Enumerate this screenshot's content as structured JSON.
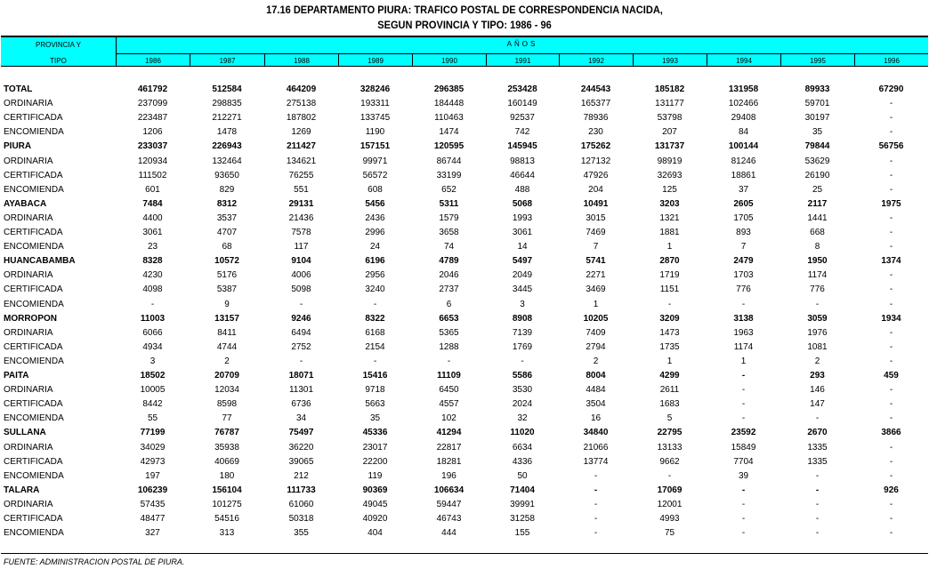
{
  "title_line1": "17.16  DEPARTAMENTO PIURA: TRAFICO POSTAL DE CORRESPONDENCIA NACIDA,",
  "title_line2": "SEGUN PROVINCIA Y TIPO: 1986 - 96",
  "header": {
    "prov1": "PROVINCIA Y",
    "prov2": "TIPO",
    "anos": "AÑOS",
    "years": [
      "1986",
      "1987",
      "1988",
      "1989",
      "1990",
      "1991",
      "1992",
      "1993",
      "1994",
      "1995",
      "1996"
    ]
  },
  "rows": [
    {
      "label": "TOTAL",
      "bold": true,
      "values": [
        "461792",
        "512584",
        "464209",
        "328246",
        "296385",
        "253428",
        "244543",
        "185182",
        "131958",
        "89933",
        "67290"
      ]
    },
    {
      "label": "ORDINARIA",
      "values": [
        "237099",
        "298835",
        "275138",
        "193311",
        "184448",
        "160149",
        "165377",
        "131177",
        "102466",
        "59701",
        "-"
      ]
    },
    {
      "label": "CERTIFICADA",
      "values": [
        "223487",
        "212271",
        "187802",
        "133745",
        "110463",
        "92537",
        "78936",
        "53798",
        "29408",
        "30197",
        "-"
      ]
    },
    {
      "label": "ENCOMIENDA",
      "values": [
        "1206",
        "1478",
        "1269",
        "1190",
        "1474",
        "742",
        "230",
        "207",
        "84",
        "35",
        "-"
      ]
    },
    {
      "label": "PIURA",
      "bold": true,
      "values": [
        "233037",
        "226943",
        "211427",
        "157151",
        "120595",
        "145945",
        "175262",
        "131737",
        "100144",
        "79844",
        "56756"
      ]
    },
    {
      "label": "ORDINARIA",
      "values": [
        "120934",
        "132464",
        "134621",
        "99971",
        "86744",
        "98813",
        "127132",
        "98919",
        "81246",
        "53629",
        "-"
      ]
    },
    {
      "label": "CERTIFICADA",
      "values": [
        "111502",
        "93650",
        "76255",
        "56572",
        "33199",
        "46644",
        "47926",
        "32693",
        "18861",
        "26190",
        "-"
      ]
    },
    {
      "label": "ENCOMIENDA",
      "values": [
        "601",
        "829",
        "551",
        "608",
        "652",
        "488",
        "204",
        "125",
        "37",
        "25",
        "-"
      ]
    },
    {
      "label": "AYABACA",
      "bold": true,
      "values": [
        "7484",
        "8312",
        "29131",
        "5456",
        "5311",
        "5068",
        "10491",
        "3203",
        "2605",
        "2117",
        "1975"
      ]
    },
    {
      "label": "ORDINARIA",
      "values": [
        "4400",
        "3537",
        "21436",
        "2436",
        "1579",
        "1993",
        "3015",
        "1321",
        "1705",
        "1441",
        "-"
      ]
    },
    {
      "label": "CERTIFICADA",
      "values": [
        "3061",
        "4707",
        "7578",
        "2996",
        "3658",
        "3061",
        "7469",
        "1881",
        "893",
        "668",
        "-"
      ]
    },
    {
      "label": "ENCOMIENDA",
      "values": [
        "23",
        "68",
        "117",
        "24",
        "74",
        "14",
        "7",
        "1",
        "7",
        "8",
        "-"
      ]
    },
    {
      "label": "HUANCABAMBA",
      "bold": true,
      "values": [
        "8328",
        "10572",
        "9104",
        "6196",
        "4789",
        "5497",
        "5741",
        "2870",
        "2479",
        "1950",
        "1374"
      ]
    },
    {
      "label": "ORDINARIA",
      "values": [
        "4230",
        "5176",
        "4006",
        "2956",
        "2046",
        "2049",
        "2271",
        "1719",
        "1703",
        "1174",
        "-"
      ]
    },
    {
      "label": "CERTIFICADA",
      "values": [
        "4098",
        "5387",
        "5098",
        "3240",
        "2737",
        "3445",
        "3469",
        "1151",
        "776",
        "776",
        "-"
      ]
    },
    {
      "label": "ENCOMIENDA",
      "values": [
        "-",
        "9",
        "-",
        "-",
        "6",
        "3",
        "1",
        "-",
        "-",
        "-",
        "-"
      ]
    },
    {
      "label": "MORROPON",
      "bold": true,
      "values": [
        "11003",
        "13157",
        "9246",
        "8322",
        "6653",
        "8908",
        "10205",
        "3209",
        "3138",
        "3059",
        "1934"
      ]
    },
    {
      "label": "ORDINARIA",
      "values": [
        "6066",
        "8411",
        "6494",
        "6168",
        "5365",
        "7139",
        "7409",
        "1473",
        "1963",
        "1976",
        "-"
      ]
    },
    {
      "label": "CERTIFICADA",
      "values": [
        "4934",
        "4744",
        "2752",
        "2154",
        "1288",
        "1769",
        "2794",
        "1735",
        "1174",
        "1081",
        "-"
      ]
    },
    {
      "label": "ENCOMIENDA",
      "values": [
        "3",
        "2",
        "-",
        "-",
        "-",
        "-",
        "2",
        "1",
        "1",
        "2",
        "-"
      ]
    },
    {
      "label": "PAITA",
      "bold": true,
      "values": [
        "18502",
        "20709",
        "18071",
        "15416",
        "11109",
        "5586",
        "8004",
        "4299",
        "-",
        "293",
        "459"
      ]
    },
    {
      "label": "ORDINARIA",
      "values": [
        "10005",
        "12034",
        "11301",
        "9718",
        "6450",
        "3530",
        "4484",
        "2611",
        "-",
        "146",
        "-"
      ]
    },
    {
      "label": "CERTIFICADA",
      "values": [
        "8442",
        "8598",
        "6736",
        "5663",
        "4557",
        "2024",
        "3504",
        "1683",
        "-",
        "147",
        "-"
      ]
    },
    {
      "label": "ENCOMIENDA",
      "values": [
        "55",
        "77",
        "34",
        "35",
        "102",
        "32",
        "16",
        "5",
        "-",
        "-",
        "-"
      ]
    },
    {
      "label": "SULLANA",
      "bold": true,
      "values": [
        "77199",
        "76787",
        "75497",
        "45336",
        "41294",
        "11020",
        "34840",
        "22795",
        "23592",
        "2670",
        "3866"
      ]
    },
    {
      "label": "ORDINARIA",
      "values": [
        "34029",
        "35938",
        "36220",
        "23017",
        "22817",
        "6634",
        "21066",
        "13133",
        "15849",
        "1335",
        "-"
      ]
    },
    {
      "label": "CERTIFICADA",
      "values": [
        "42973",
        "40669",
        "39065",
        "22200",
        "18281",
        "4336",
        "13774",
        "9662",
        "7704",
        "1335",
        "-"
      ]
    },
    {
      "label": "ENCOMIENDA",
      "values": [
        "197",
        "180",
        "212",
        "119",
        "196",
        "50",
        "-",
        "-",
        "39",
        "-",
        "-"
      ]
    },
    {
      "label": "TALARA",
      "bold": true,
      "values": [
        "106239",
        "156104",
        "111733",
        "90369",
        "106634",
        "71404",
        "-",
        "17069",
        "-",
        "-",
        "926"
      ]
    },
    {
      "label": "ORDINARIA",
      "values": [
        "57435",
        "101275",
        "61060",
        "49045",
        "59447",
        "39991",
        "-",
        "12001",
        "-",
        "-",
        "-"
      ]
    },
    {
      "label": "CERTIFICADA",
      "values": [
        "48477",
        "54516",
        "50318",
        "40920",
        "46743",
        "31258",
        "-",
        "4993",
        "-",
        "-",
        "-"
      ]
    },
    {
      "label": "ENCOMIENDA",
      "values": [
        "327",
        "313",
        "355",
        "404",
        "444",
        "155",
        "-",
        "75",
        "-",
        "-",
        "-"
      ]
    }
  ],
  "footer": "FUENTE: ADMINISTRACION POSTAL DE PIURA."
}
